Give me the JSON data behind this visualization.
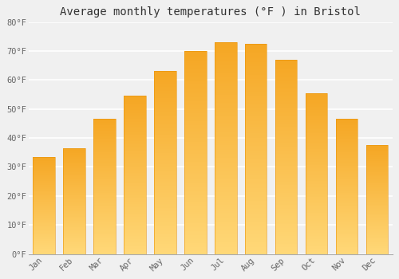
{
  "title": "Average monthly temperatures (°F ) in Bristol",
  "months": [
    "Jan",
    "Feb",
    "Mar",
    "Apr",
    "May",
    "Jun",
    "Jul",
    "Aug",
    "Sep",
    "Oct",
    "Nov",
    "Dec"
  ],
  "values": [
    33.5,
    36.5,
    46.5,
    54.5,
    63.0,
    70.0,
    73.0,
    72.5,
    67.0,
    55.5,
    46.5,
    37.5
  ],
  "bar_color_top": "#F5A623",
  "bar_color_bottom": "#FFD878",
  "ylim": [
    0,
    80
  ],
  "yticks": [
    0,
    10,
    20,
    30,
    40,
    50,
    60,
    70,
    80
  ],
  "background_color": "#f0f0f0",
  "grid_color": "#ffffff",
  "title_fontsize": 10,
  "tick_fontsize": 7.5,
  "bar_width": 0.72
}
